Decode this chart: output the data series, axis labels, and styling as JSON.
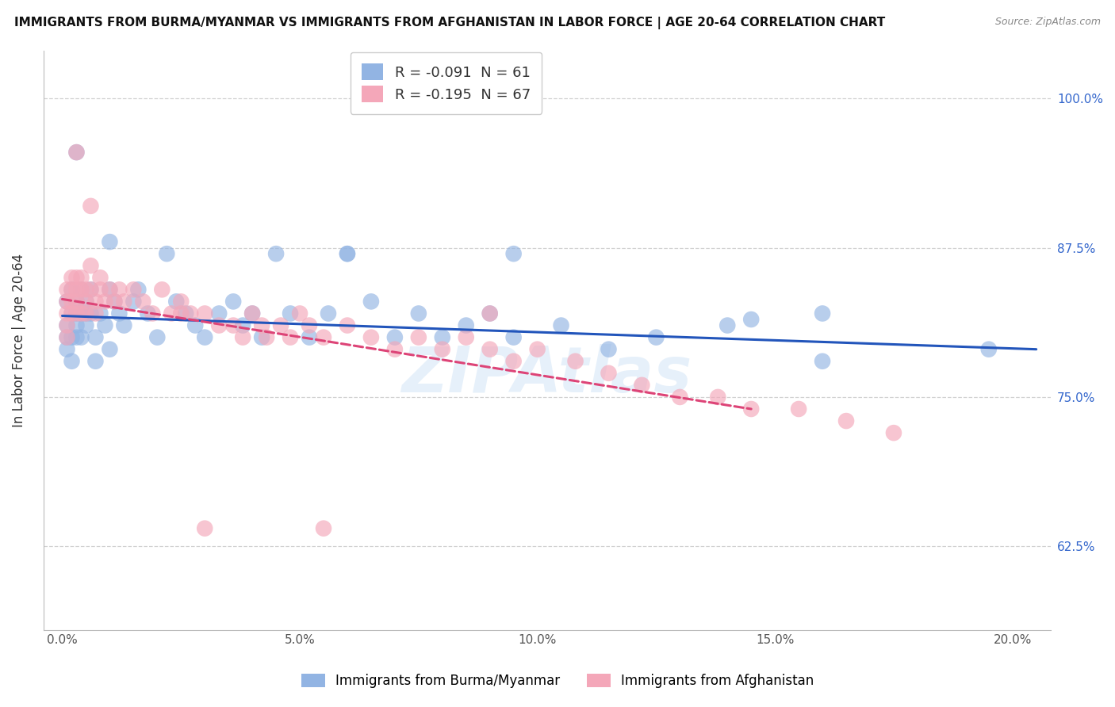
{
  "title": "IMMIGRANTS FROM BURMA/MYANMAR VS IMMIGRANTS FROM AFGHANISTAN IN LABOR FORCE | AGE 20-64 CORRELATION CHART",
  "source": "Source: ZipAtlas.com",
  "ylabel": "In Labor Force | Age 20-64",
  "yticks": [
    0.625,
    0.75,
    0.875,
    1.0
  ],
  "ytick_labels": [
    "62.5%",
    "75.0%",
    "87.5%",
    "100.0%"
  ],
  "xticks": [
    0.0,
    0.05,
    0.1,
    0.15,
    0.2
  ],
  "xtick_labels": [
    "0.0%",
    "5.0%",
    "10.0%",
    "15.0%",
    "20.0%"
  ],
  "xlim": [
    -0.004,
    0.208
  ],
  "ylim": [
    0.555,
    1.04
  ],
  "legend_label1": "Immigrants from Burma/Myanmar",
  "legend_label2": "Immigrants from Afghanistan",
  "R1": -0.091,
  "N1": 61,
  "R2": -0.195,
  "N2": 67,
  "color1": "#92b4e3",
  "color2": "#f4a7b9",
  "trendline1_color": "#2255bb",
  "trendline2_color": "#dd4477",
  "blue_x": [
    0.001,
    0.001,
    0.001,
    0.001,
    0.002,
    0.002,
    0.002,
    0.002,
    0.003,
    0.003,
    0.003,
    0.003,
    0.004,
    0.004,
    0.004,
    0.005,
    0.005,
    0.005,
    0.006,
    0.006,
    0.007,
    0.007,
    0.008,
    0.009,
    0.01,
    0.01,
    0.011,
    0.012,
    0.013,
    0.015,
    0.016,
    0.018,
    0.02,
    0.022,
    0.024,
    0.026,
    0.028,
    0.03,
    0.033,
    0.036,
    0.038,
    0.04,
    0.042,
    0.045,
    0.048,
    0.052,
    0.056,
    0.06,
    0.065,
    0.07,
    0.075,
    0.08,
    0.085,
    0.09,
    0.095,
    0.105,
    0.115,
    0.125,
    0.14,
    0.16,
    0.195
  ],
  "blue_y": [
    0.83,
    0.81,
    0.8,
    0.79,
    0.84,
    0.82,
    0.8,
    0.78,
    0.83,
    0.82,
    0.81,
    0.8,
    0.84,
    0.82,
    0.8,
    0.83,
    0.82,
    0.81,
    0.84,
    0.82,
    0.8,
    0.78,
    0.82,
    0.81,
    0.84,
    0.79,
    0.83,
    0.82,
    0.81,
    0.83,
    0.84,
    0.82,
    0.8,
    0.87,
    0.83,
    0.82,
    0.81,
    0.8,
    0.82,
    0.83,
    0.81,
    0.82,
    0.8,
    0.87,
    0.82,
    0.8,
    0.82,
    0.87,
    0.83,
    0.8,
    0.82,
    0.8,
    0.81,
    0.82,
    0.8,
    0.81,
    0.79,
    0.8,
    0.81,
    0.82,
    0.79
  ],
  "pink_x": [
    0.001,
    0.001,
    0.001,
    0.001,
    0.001,
    0.002,
    0.002,
    0.002,
    0.002,
    0.003,
    0.003,
    0.003,
    0.003,
    0.004,
    0.004,
    0.004,
    0.005,
    0.005,
    0.005,
    0.006,
    0.006,
    0.007,
    0.007,
    0.008,
    0.008,
    0.009,
    0.01,
    0.011,
    0.012,
    0.013,
    0.015,
    0.017,
    0.019,
    0.021,
    0.023,
    0.025,
    0.027,
    0.03,
    0.033,
    0.036,
    0.038,
    0.04,
    0.042,
    0.043,
    0.046,
    0.048,
    0.05,
    0.052,
    0.055,
    0.06,
    0.065,
    0.07,
    0.075,
    0.08,
    0.085,
    0.09,
    0.095,
    0.1,
    0.108,
    0.115,
    0.122,
    0.13,
    0.138,
    0.145,
    0.155,
    0.165,
    0.175
  ],
  "pink_y": [
    0.84,
    0.83,
    0.82,
    0.81,
    0.8,
    0.85,
    0.84,
    0.83,
    0.82,
    0.85,
    0.84,
    0.83,
    0.82,
    0.85,
    0.84,
    0.82,
    0.84,
    0.83,
    0.82,
    0.86,
    0.84,
    0.83,
    0.82,
    0.85,
    0.84,
    0.83,
    0.84,
    0.83,
    0.84,
    0.83,
    0.84,
    0.83,
    0.82,
    0.84,
    0.82,
    0.83,
    0.82,
    0.82,
    0.81,
    0.81,
    0.8,
    0.82,
    0.81,
    0.8,
    0.81,
    0.8,
    0.82,
    0.81,
    0.8,
    0.81,
    0.8,
    0.79,
    0.8,
    0.79,
    0.8,
    0.79,
    0.78,
    0.79,
    0.78,
    0.77,
    0.76,
    0.75,
    0.75,
    0.74,
    0.74,
    0.73,
    0.72
  ],
  "outlier_blue_x": [
    0.003,
    0.01,
    0.06,
    0.095,
    0.145,
    0.16
  ],
  "outlier_blue_y": [
    0.955,
    0.88,
    0.87,
    0.87,
    0.815,
    0.78
  ],
  "outlier_pink_x": [
    0.003,
    0.006,
    0.025,
    0.03,
    0.055,
    0.09
  ],
  "outlier_pink_y": [
    0.955,
    0.91,
    0.82,
    0.64,
    0.64,
    0.82
  ],
  "trend1_x0": 0.0,
  "trend1_x1": 0.205,
  "trend1_y0": 0.818,
  "trend1_y1": 0.79,
  "trend2_x0": 0.0,
  "trend2_x1": 0.145,
  "trend2_y0": 0.832,
  "trend2_y1": 0.74
}
